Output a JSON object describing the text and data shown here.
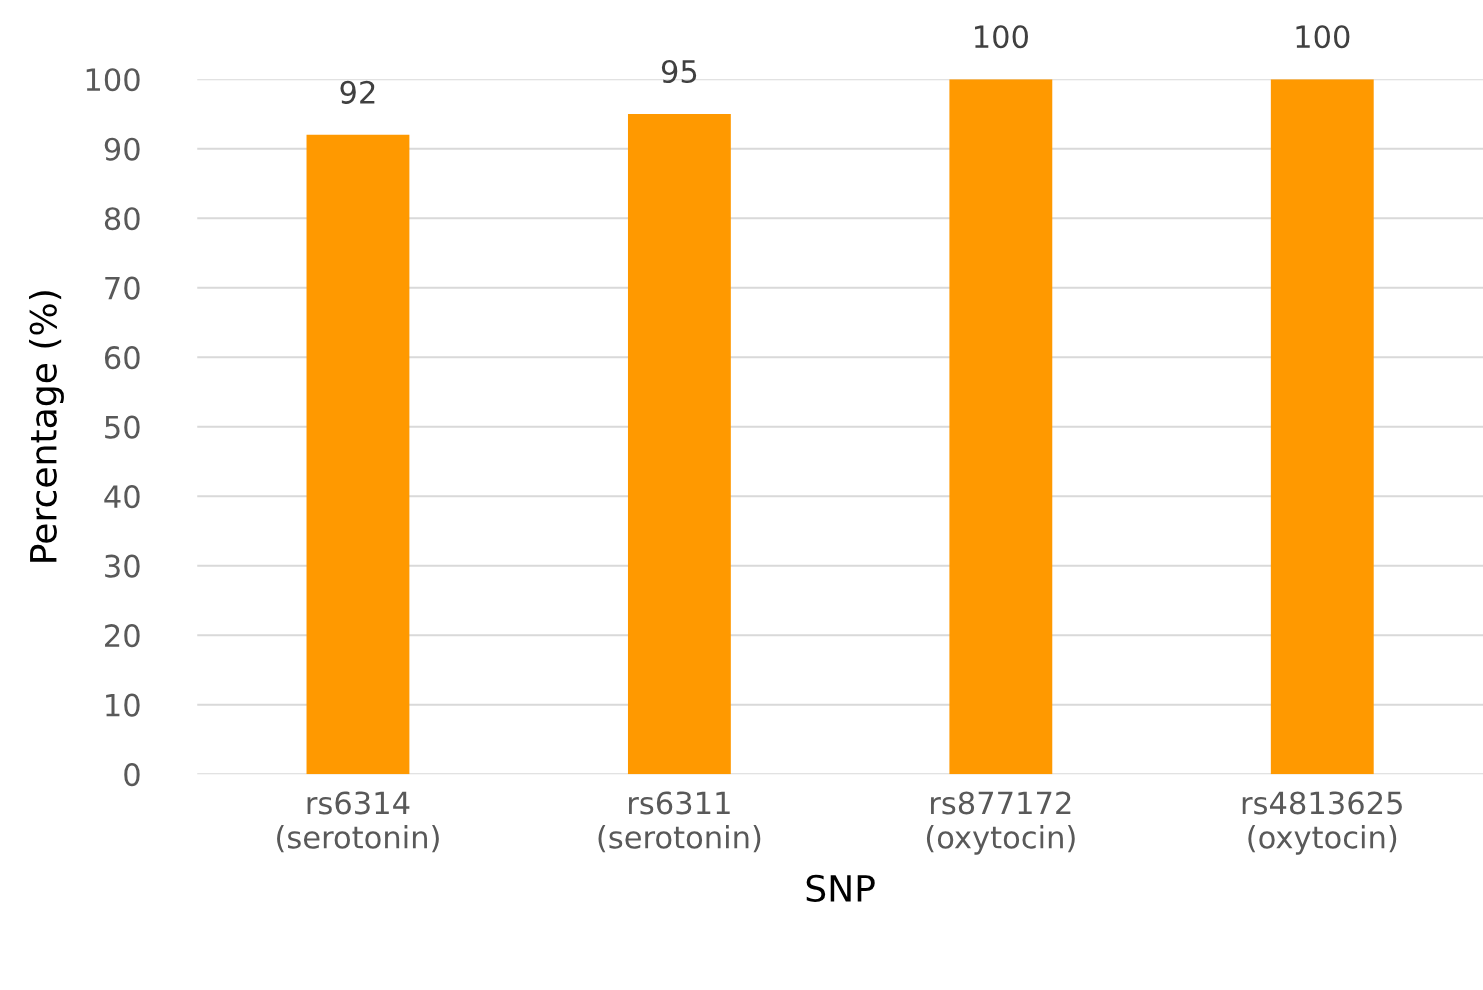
{
  "chart_data": {
    "type": "bar",
    "xlabel": "SNP",
    "ylabel": "Percentage (%)",
    "categories": [
      "rs6314\n(serotonin)",
      "rs6311\n(serotonin)",
      "rs877172\n(oxytocin)",
      "rs4813625\n(oxytocin)"
    ],
    "values": [
      92,
      95,
      100,
      100
    ],
    "color": "#ff9900",
    "ylim": [
      0,
      100
    ],
    "yticks": [
      0,
      10,
      20,
      30,
      40,
      50,
      60,
      70,
      80,
      90,
      100
    ],
    "grid": "y",
    "data_labels": true
  }
}
